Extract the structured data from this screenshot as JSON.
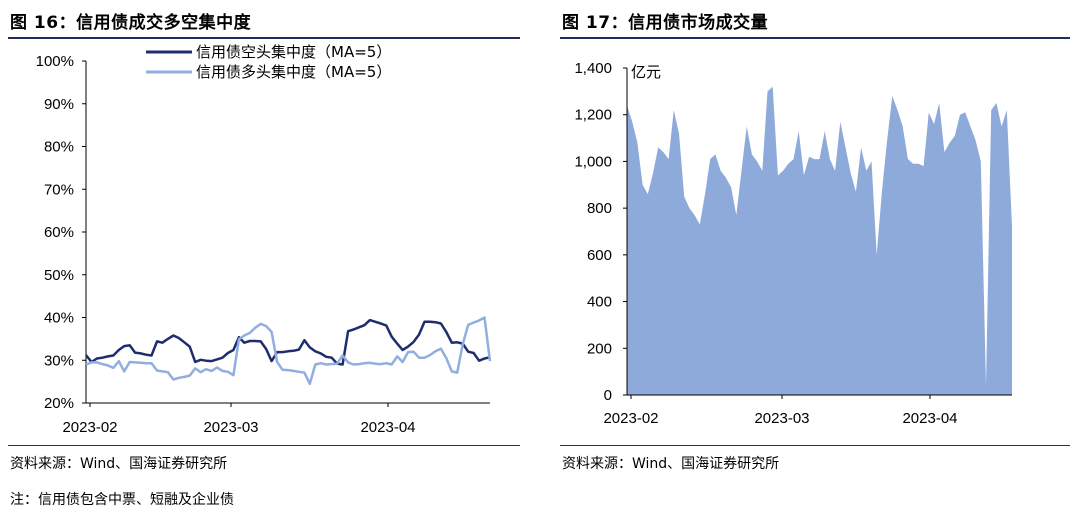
{
  "figures": [
    {
      "title": "图 16：信用债成交多空集中度",
      "source": "资料来源：Wind、国海证券研究所"
    },
    {
      "title": "图 17：信用债市场成交量",
      "source": "资料来源：Wind、国海证券研究所"
    }
  ],
  "note": "注：信用债包含中票、短融及企业债",
  "chart_data": [
    {
      "type": "line",
      "title": "",
      "xlabel": "",
      "ylabel": "",
      "x_ticks": [
        "2023-02",
        "2023-03",
        "2023-04"
      ],
      "y_ticks": [
        "20%",
        "30%",
        "40%",
        "50%",
        "60%",
        "70%",
        "80%",
        "90%",
        "100%"
      ],
      "ylim": [
        20,
        100
      ],
      "grid": false,
      "legend_position": "top",
      "series": [
        {
          "name": "信用债空头集中度（MA=5）",
          "color": "#1f2d6e",
          "values": [
            31.2,
            29.6,
            30.4,
            30.6,
            30.9,
            31.1,
            32.4,
            33.3,
            33.5,
            31.8,
            31.6,
            31.3,
            31.1,
            34.4,
            34.1,
            35.0,
            35.8,
            35.2,
            34.2,
            33.2,
            29.6,
            30.1,
            29.9,
            29.8,
            30.2,
            30.6,
            31.7,
            32.4,
            35.4,
            34.1,
            34.5,
            34.5,
            34.4,
            32.6,
            29.8,
            31.9,
            31.9,
            32.1,
            32.2,
            32.5,
            34.7,
            33.0,
            32.1,
            31.6,
            30.8,
            30.6,
            29.2,
            29.0,
            36.8,
            37.2,
            37.7,
            38.2,
            39.4,
            39.0,
            38.6,
            38.1,
            35.5,
            33.9,
            32.4,
            33.2,
            34.3,
            36.0,
            39.0,
            39.0,
            38.9,
            38.6,
            36.6,
            34.1,
            34.2,
            33.9,
            32.0,
            31.7,
            29.9,
            30.4,
            30.7
          ]
        },
        {
          "name": "信用债多头集中度（MA=5）",
          "color": "#92aee0",
          "values": [
            29.0,
            29.5,
            29.5,
            29.1,
            28.8,
            28.2,
            29.8,
            27.4,
            29.6,
            29.5,
            29.4,
            29.3,
            29.3,
            27.6,
            27.4,
            27.2,
            25.5,
            25.9,
            26.1,
            26.4,
            28.1,
            27.2,
            27.9,
            27.5,
            28.3,
            27.5,
            27.3,
            26.5,
            34.9,
            35.8,
            36.4,
            37.6,
            38.5,
            38.0,
            36.6,
            29.6,
            27.8,
            27.7,
            27.5,
            27.3,
            27.1,
            24.5,
            29.0,
            29.3,
            29.0,
            29.1,
            29.2,
            31.1,
            29.5,
            29.0,
            29.1,
            29.3,
            29.4,
            29.2,
            29.1,
            29.3,
            29.0,
            30.9,
            29.6,
            31.9,
            32.0,
            30.6,
            30.6,
            31.2,
            32.1,
            32.7,
            30.5,
            27.4,
            27.1,
            33.7,
            38.3,
            38.8,
            39.3,
            40.0,
            29.8
          ]
        }
      ]
    },
    {
      "type": "area",
      "title": "",
      "xlabel": "",
      "ylabel": "亿元",
      "x_ticks": [
        "2023-02",
        "2023-03",
        "2023-04"
      ],
      "y_ticks": [
        "0",
        "200",
        "400",
        "600",
        "800",
        "1,000",
        "1,200",
        "1,400"
      ],
      "ylim": [
        0,
        1400
      ],
      "grid": false,
      "color": "#8eaadb",
      "values": [
        1240,
        1170,
        1080,
        900,
        860,
        950,
        1060,
        1040,
        1010,
        1220,
        1120,
        850,
        800,
        770,
        730,
        860,
        1010,
        1030,
        960,
        930,
        890,
        770,
        960,
        1150,
        1030,
        1000,
        960,
        1300,
        1320,
        940,
        960,
        990,
        1010,
        1130,
        940,
        1020,
        1010,
        1010,
        1130,
        1010,
        960,
        1170,
        1060,
        950,
        870,
        1060,
        960,
        1000,
        600,
        870,
        1090,
        1280,
        1220,
        1150,
        1010,
        990,
        990,
        980,
        1210,
        1160,
        1250,
        1040,
        1080,
        1110,
        1200,
        1210,
        1150,
        1090,
        1000,
        40,
        1220,
        1250,
        1150,
        1220,
        720
      ]
    }
  ]
}
